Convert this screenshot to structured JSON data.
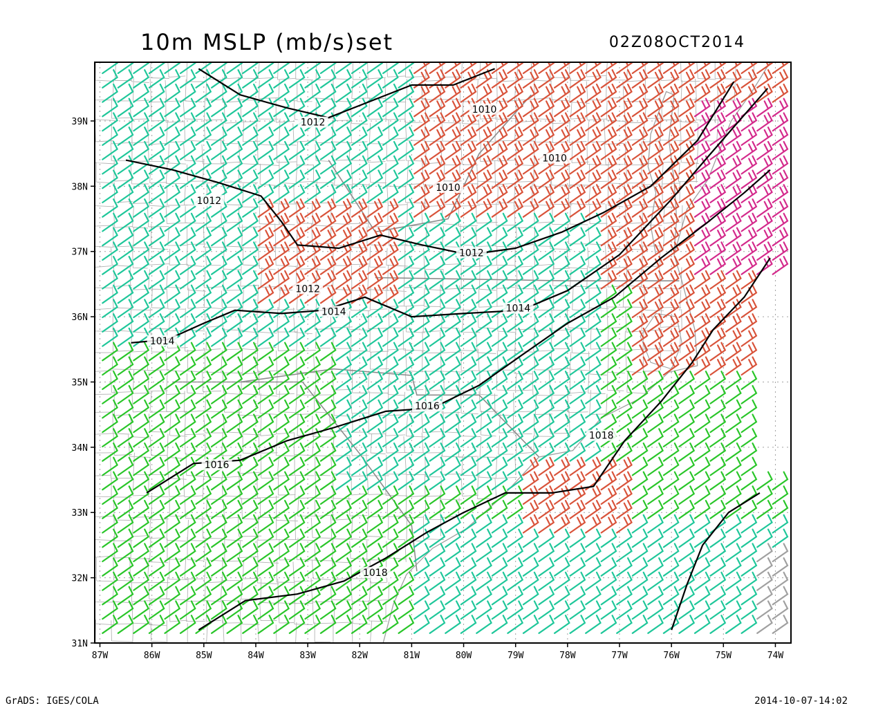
{
  "header": {
    "title": "10m MSLP (mb/s)set",
    "valid_time": "02Z08OCT2014"
  },
  "footer": {
    "left": "GrADS: IGES/COLA",
    "right": "2014-10-07-14:02"
  },
  "map": {
    "projection": "lat-lon",
    "lon_range": [
      -87.1,
      -73.7
    ],
    "lat_range": [
      31.0,
      39.9
    ],
    "grid_lines": "dotted",
    "boundaries": [
      "state",
      "county"
    ],
    "boundary_color": "#a0a0a0",
    "frame_color": "#000000"
  },
  "axes": {
    "x_ticks": [
      {
        "value": -87,
        "label": "87W"
      },
      {
        "value": -86,
        "label": "86W"
      },
      {
        "value": -85,
        "label": "85W"
      },
      {
        "value": -84,
        "label": "84W"
      },
      {
        "value": -83,
        "label": "83W"
      },
      {
        "value": -82,
        "label": "82W"
      },
      {
        "value": -81,
        "label": "81W"
      },
      {
        "value": -80,
        "label": "80W"
      },
      {
        "value": -79,
        "label": "79W"
      },
      {
        "value": -78,
        "label": "78W"
      },
      {
        "value": -77,
        "label": "77W"
      },
      {
        "value": -76,
        "label": "76W"
      },
      {
        "value": -75,
        "label": "75W"
      },
      {
        "value": -74,
        "label": "74W"
      }
    ],
    "y_ticks": [
      {
        "value": 31,
        "label": "31N"
      },
      {
        "value": 32,
        "label": "32N"
      },
      {
        "value": 33,
        "label": "33N"
      },
      {
        "value": 34,
        "label": "34N"
      },
      {
        "value": 35,
        "label": "35N"
      },
      {
        "value": 36,
        "label": "36N"
      },
      {
        "value": 37,
        "label": "37N"
      },
      {
        "value": 38,
        "label": "38N"
      },
      {
        "value": 39,
        "label": "39N"
      }
    ]
  },
  "wind_barb_colors": {
    "light": "#29c629",
    "moderate": "#1fc79a",
    "fresh": "#d9533a",
    "strong": "#d42a8c",
    "gale": "#e8a025",
    "missing": "#a0a0a0"
  },
  "wind_direction": "southwesterly",
  "contours": {
    "variable": "MSLP",
    "units": "mb",
    "line_color": "#000000",
    "labels": [
      {
        "text": "1010",
        "lon": -79.6,
        "lat": 39.15
      },
      {
        "text": "1012",
        "lon": -82.9,
        "lat": 38.95
      },
      {
        "text": "1010",
        "lon": -78.25,
        "lat": 38.4
      },
      {
        "text": "1010",
        "lon": -80.3,
        "lat": 37.95
      },
      {
        "text": "1012",
        "lon": -84.9,
        "lat": 37.75
      },
      {
        "text": "1012",
        "lon": -79.85,
        "lat": 36.95
      },
      {
        "text": "1012",
        "lon": -83.0,
        "lat": 36.4
      },
      {
        "text": "1014",
        "lon": -82.5,
        "lat": 36.05
      },
      {
        "text": "1014",
        "lon": -78.95,
        "lat": 36.1
      },
      {
        "text": "1014",
        "lon": -85.8,
        "lat": 35.6
      },
      {
        "text": "1016",
        "lon": -80.7,
        "lat": 34.6
      },
      {
        "text": "1016",
        "lon": -84.75,
        "lat": 33.7
      },
      {
        "text": "1018",
        "lon": -77.35,
        "lat": 34.15
      },
      {
        "text": "1018",
        "lon": -81.7,
        "lat": 32.05
      }
    ]
  }
}
